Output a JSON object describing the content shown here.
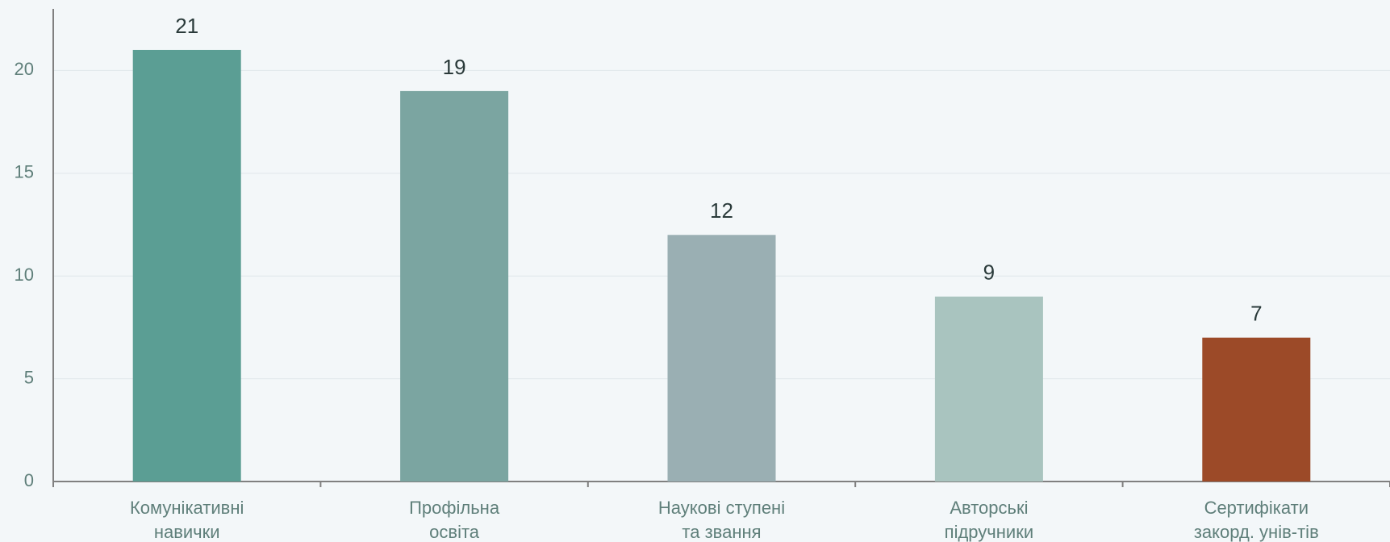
{
  "chart_data": {
    "type": "bar",
    "categories": [
      [
        "Комунікативні",
        "навички"
      ],
      [
        "Профільна",
        "освіта"
      ],
      [
        "Наукові ступені",
        "та звання"
      ],
      [
        "Авторські",
        "підручники"
      ],
      [
        "Сертифікати",
        "закорд. унів-тів"
      ]
    ],
    "values": [
      21,
      19,
      12,
      9,
      7
    ],
    "colors": [
      "#5b9e94",
      "#7ba5a1",
      "#9aafb3",
      "#a9c4bf",
      "#9c4a28"
    ],
    "ylim": [
      0,
      23
    ],
    "yticks": [
      0,
      5,
      10,
      15,
      20
    ],
    "grid": true
  }
}
